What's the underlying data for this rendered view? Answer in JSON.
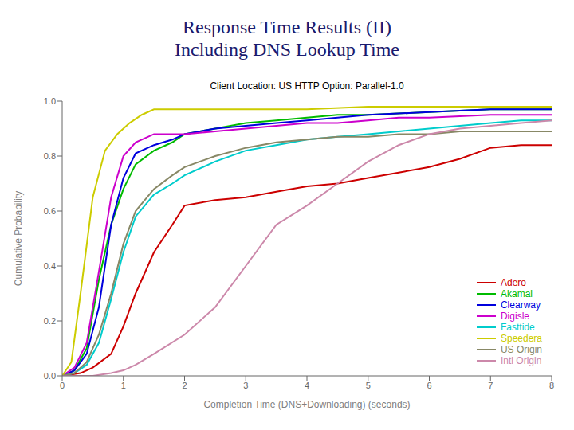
{
  "chart_data": {
    "type": "line",
    "title": "Response Time Results (II)\nIncluding DNS Lookup Time",
    "subtitle": "Client Location: US  HTTP Option: Parallel-1.0",
    "x_label": "Completion Time (DNS+Downloading) (seconds)",
    "y_label": "Cumulative Probability",
    "xlim": [
      0,
      8
    ],
    "ylim": [
      0,
      1
    ],
    "xticks": [
      0,
      1,
      2,
      3,
      4,
      5,
      6,
      7,
      8
    ],
    "yticks": [
      {
        "value": 0,
        "label": "0.0"
      },
      0.2,
      0.4,
      0.6,
      0.8,
      {
        "value": 1,
        "label": "1.0"
      }
    ],
    "grid": false,
    "legend": "lower right",
    "series": [
      {
        "name": "Adero",
        "color": "#cc0000",
        "x": [
          0,
          0.3,
          0.5,
          0.8,
          1.0,
          1.2,
          1.5,
          1.8,
          2.0,
          2.5,
          3.0,
          3.5,
          4.0,
          4.5,
          5.0,
          5.5,
          6.0,
          6.5,
          7.0,
          7.5,
          8.0
        ],
        "values": [
          0,
          0.01,
          0.03,
          0.08,
          0.18,
          0.3,
          0.45,
          0.55,
          0.62,
          0.64,
          0.65,
          0.67,
          0.69,
          0.7,
          0.72,
          0.74,
          0.76,
          0.79,
          0.83,
          0.84,
          0.84
        ]
      },
      {
        "name": "Akamai",
        "color": "#00bb00",
        "x": [
          0,
          0.2,
          0.4,
          0.6,
          0.8,
          1.0,
          1.2,
          1.5,
          1.8,
          2.0,
          2.5,
          3.0,
          3.5,
          4.0,
          4.5,
          5.0,
          6.0,
          7.0,
          8.0
        ],
        "values": [
          0,
          0.02,
          0.1,
          0.35,
          0.55,
          0.68,
          0.77,
          0.82,
          0.85,
          0.88,
          0.9,
          0.92,
          0.93,
          0.94,
          0.95,
          0.95,
          0.96,
          0.97,
          0.97
        ]
      },
      {
        "name": "Clearway",
        "color": "#0000dd",
        "x": [
          0,
          0.2,
          0.4,
          0.6,
          0.8,
          1.0,
          1.2,
          1.5,
          1.8,
          2.0,
          2.5,
          3.0,
          3.5,
          4.0,
          4.5,
          5.0,
          6.0,
          7.0,
          8.0
        ],
        "values": [
          0,
          0.02,
          0.08,
          0.25,
          0.55,
          0.72,
          0.81,
          0.84,
          0.86,
          0.88,
          0.9,
          0.91,
          0.92,
          0.93,
          0.94,
          0.95,
          0.96,
          0.97,
          0.97
        ]
      },
      {
        "name": "Digisle",
        "color": "#cc00cc",
        "x": [
          0,
          0.2,
          0.4,
          0.6,
          0.8,
          1.0,
          1.2,
          1.5,
          1.8,
          2.0,
          2.5,
          3.0,
          3.5,
          4.0,
          4.5,
          5.0,
          5.5,
          6.0,
          7.0,
          7.5,
          8.0
        ],
        "values": [
          0,
          0.03,
          0.12,
          0.38,
          0.65,
          0.8,
          0.85,
          0.88,
          0.88,
          0.88,
          0.89,
          0.9,
          0.91,
          0.92,
          0.92,
          0.93,
          0.94,
          0.94,
          0.95,
          0.95,
          0.95
        ]
      },
      {
        "name": "Fasttide",
        "color": "#00cccc",
        "x": [
          0,
          0.2,
          0.4,
          0.6,
          0.8,
          1.0,
          1.2,
          1.5,
          1.8,
          2.0,
          2.5,
          3.0,
          3.5,
          4.0,
          4.5,
          5.0,
          5.5,
          6.0,
          6.5,
          7.0,
          7.5,
          8.0
        ],
        "values": [
          0,
          0.01,
          0.04,
          0.12,
          0.28,
          0.45,
          0.58,
          0.66,
          0.7,
          0.73,
          0.78,
          0.82,
          0.84,
          0.86,
          0.87,
          0.88,
          0.89,
          0.9,
          0.91,
          0.92,
          0.93,
          0.93
        ]
      },
      {
        "name": "Speedera",
        "color": "#cccc00",
        "x": [
          0,
          0.15,
          0.3,
          0.5,
          0.7,
          0.9,
          1.1,
          1.3,
          1.5,
          2.0,
          2.5,
          3.0,
          4.0,
          5.0,
          6.0,
          7.0,
          8.0
        ],
        "values": [
          0,
          0.05,
          0.3,
          0.65,
          0.82,
          0.88,
          0.92,
          0.95,
          0.97,
          0.97,
          0.97,
          0.97,
          0.97,
          0.98,
          0.98,
          0.98,
          0.98
        ]
      },
      {
        "name": "US Origin",
        "color": "#888866",
        "x": [
          0,
          0.2,
          0.4,
          0.6,
          0.8,
          1.0,
          1.2,
          1.5,
          1.8,
          2.0,
          2.5,
          3.0,
          3.5,
          4.0,
          4.5,
          5.0,
          5.5,
          6.0,
          6.5,
          7.0,
          7.5,
          8.0
        ],
        "values": [
          0,
          0.01,
          0.05,
          0.15,
          0.3,
          0.48,
          0.6,
          0.68,
          0.73,
          0.76,
          0.8,
          0.83,
          0.85,
          0.86,
          0.87,
          0.87,
          0.88,
          0.88,
          0.89,
          0.89,
          0.89,
          0.89
        ]
      },
      {
        "name": "Intl Origin",
        "color": "#cc88aa",
        "x": [
          0,
          0.2,
          0.5,
          0.8,
          1.0,
          1.2,
          1.5,
          2.0,
          2.5,
          3.0,
          3.5,
          4.0,
          4.5,
          5.0,
          5.5,
          6.0,
          6.5,
          7.0,
          7.5,
          8.0
        ],
        "values": [
          0,
          0.0,
          0.0,
          0.01,
          0.02,
          0.04,
          0.08,
          0.15,
          0.25,
          0.4,
          0.55,
          0.62,
          0.7,
          0.78,
          0.84,
          0.88,
          0.9,
          0.91,
          0.92,
          0.93
        ]
      }
    ]
  }
}
